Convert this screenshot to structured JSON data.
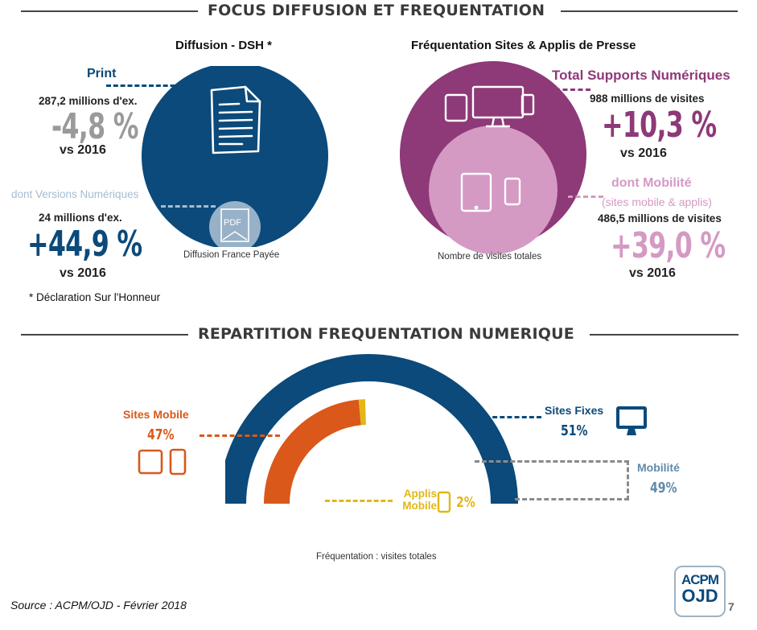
{
  "section1": {
    "title": "FOCUS DIFFUSION ET FREQUENTATION"
  },
  "diffusion": {
    "heading": "Diffusion - DSH *",
    "circle_caption": "Diffusion France Payée",
    "pdf_label": "PDF",
    "print": {
      "label": "Print",
      "amount": "287,2 millions d'ex.",
      "change": "-4,8 %",
      "vs": "vs 2016"
    },
    "numeric": {
      "label": "dont Versions Numériques",
      "amount": "24 millions d'ex.",
      "change": "+44,9 %",
      "vs": "vs 2016"
    },
    "footnote": "* Déclaration Sur l'Honneur"
  },
  "frequentation": {
    "heading": "Fréquentation Sites & Applis de Presse",
    "circle_caption": "Nombre de visites totales",
    "total": {
      "label": "Total Supports Numériques",
      "amount": "988 millions de visites",
      "change": "+10,3 %",
      "vs": "vs 2016"
    },
    "mobile": {
      "label": "dont Mobilité",
      "sublabel": "(sites mobile & applis)",
      "amount": "486,5 millions de visites",
      "change": "+39,0 %",
      "vs": "vs 2016"
    }
  },
  "section2": {
    "title": "REPARTITION FREQUENTATION NUMERIQUE"
  },
  "chart_data": {
    "type": "pie",
    "title": "",
    "caption": "Fréquentation : visites totales",
    "outer": [
      {
        "name": "Sites Fixes",
        "value": 51,
        "label": "51%",
        "color": "#0b4a7a"
      },
      {
        "name": "Mobilité",
        "value": 49,
        "label": "49%",
        "color": "#5f8aab"
      }
    ],
    "inner": [
      {
        "name": "Sites Mobile",
        "value": 47,
        "label": "47%",
        "color": "#d9581a"
      },
      {
        "name": "Applis Mobile",
        "value": 2,
        "label": "2%",
        "color": "#e3b716"
      }
    ]
  },
  "footer": {
    "source": "Source : ACPM/OJD - Février 2018",
    "logo_top": "ACPM",
    "logo_bottom": "OJD",
    "page": "7"
  },
  "colors": {
    "navy": "#0b4a7a",
    "purple": "#8e3978",
    "light_purple": "#d49ac4",
    "orange": "#d9581a",
    "yellow": "#e3b716",
    "steel": "#5f8aab"
  },
  "icons": [
    "document-icon",
    "pdf-icon",
    "tablet-icon",
    "monitor-icon",
    "phone-icon"
  ]
}
